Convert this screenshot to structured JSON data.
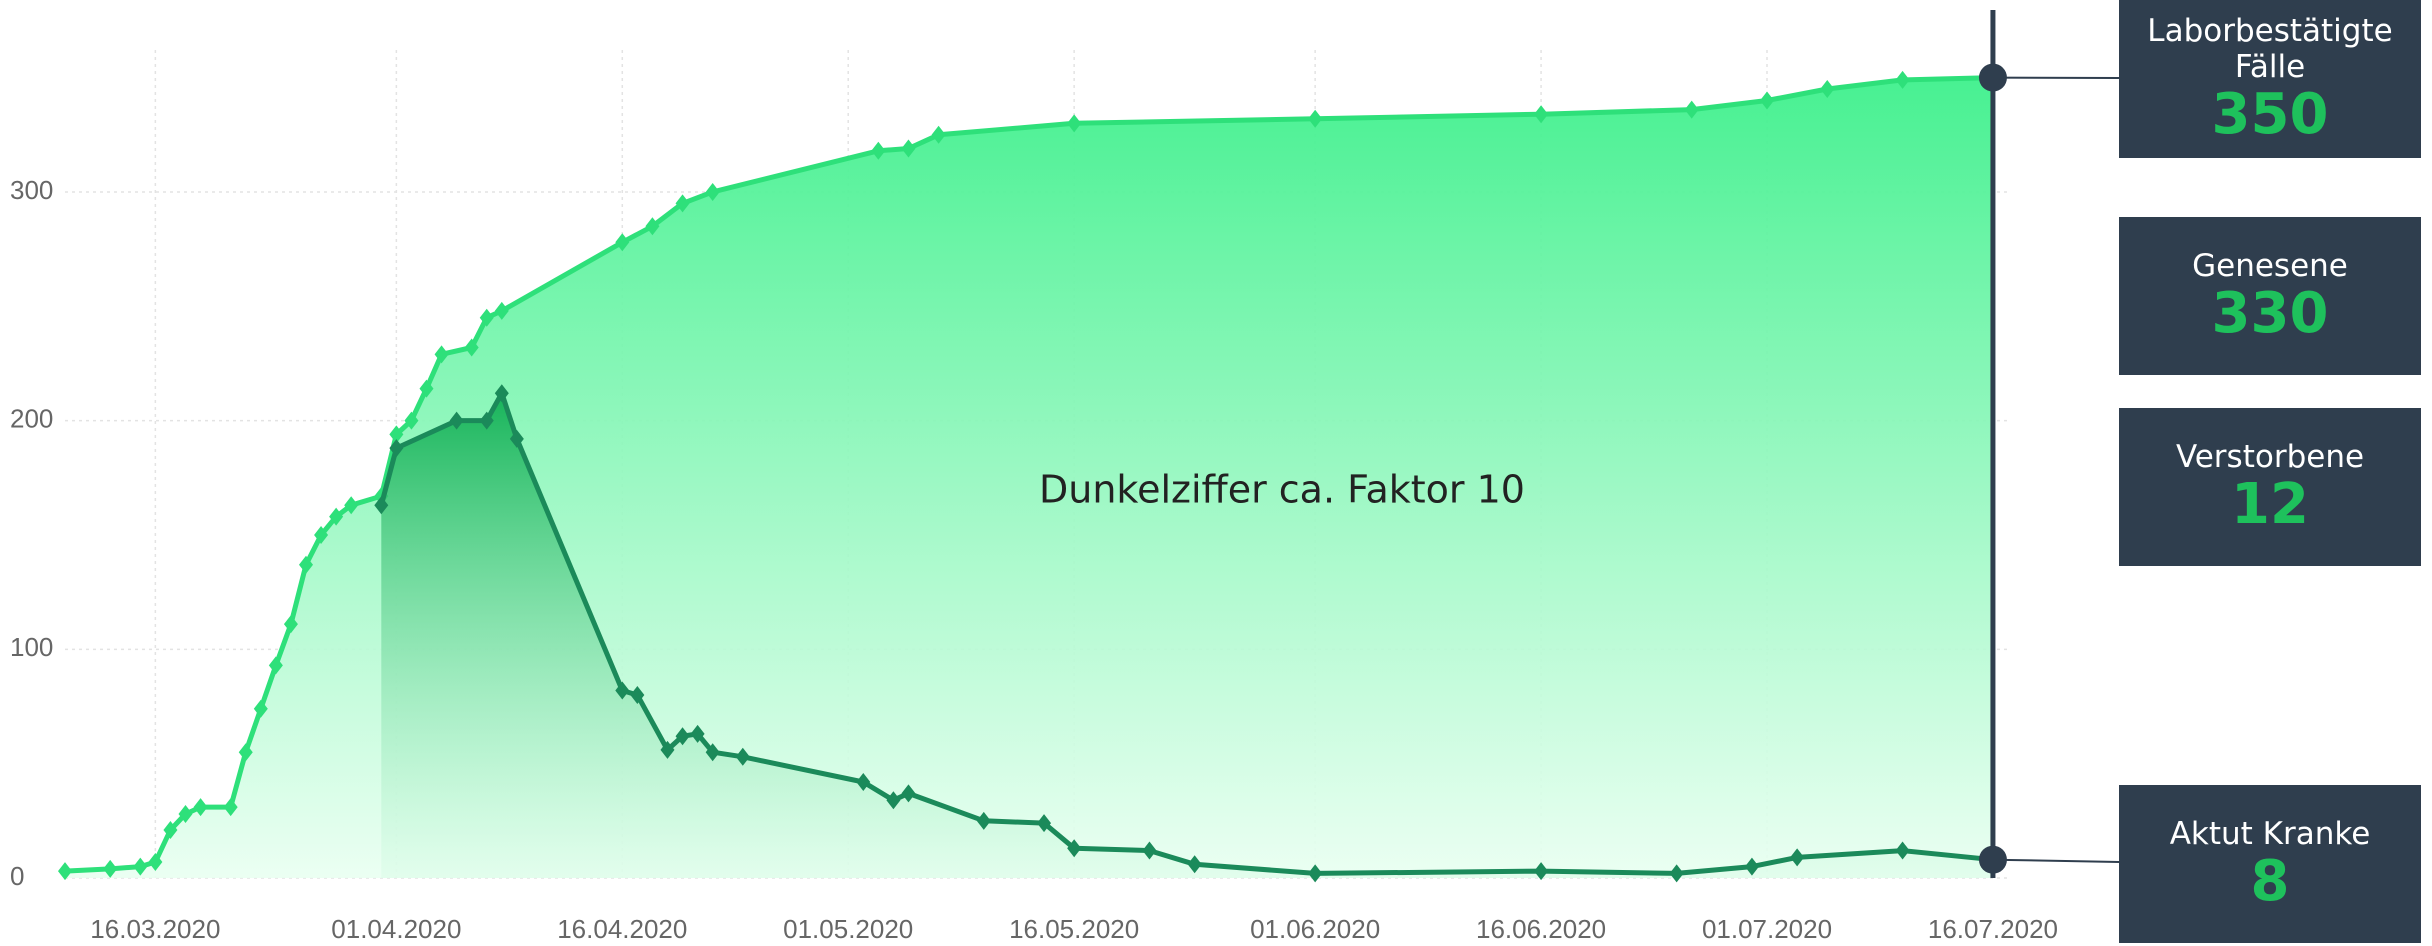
{
  "chart_data": {
    "type": "area",
    "annotation": "Dunkelziffer  ca.  Faktor 10",
    "xlim": [
      "10.03.2020",
      "17.07.2020"
    ],
    "xticks": [
      "16.03.2020",
      "01.04.2020",
      "16.04.2020",
      "01.05.2020",
      "16.05.2020",
      "01.06.2020",
      "16.06.2020",
      "01.07.2020",
      "16.07.2020"
    ],
    "ylim": [
      0,
      380
    ],
    "yticks": [
      0,
      100,
      200,
      300
    ],
    "grid": true,
    "series": [
      {
        "name": "Laborbestätigte Fälle",
        "color": "#2ee07a",
        "x": [
          "10.03.2020",
          "13.03.2020",
          "15.03.2020",
          "16.03.2020",
          "17.03.2020",
          "18.03.2020",
          "19.03.2020",
          "21.03.2020",
          "22.03.2020",
          "23.03.2020",
          "24.03.2020",
          "25.03.2020",
          "26.03.2020",
          "27.03.2020",
          "28.03.2020",
          "29.03.2020",
          "31.03.2020",
          "01.04.2020",
          "02.04.2020",
          "03.04.2020",
          "04.04.2020",
          "06.04.2020",
          "07.04.2020",
          "08.04.2020",
          "16.04.2020",
          "18.04.2020",
          "20.04.2020",
          "22.04.2020",
          "03.05.2020",
          "05.05.2020",
          "07.05.2020",
          "16.05.2020",
          "01.06.2020",
          "16.06.2020",
          "26.06.2020",
          "01.07.2020",
          "05.07.2020",
          "10.07.2020",
          "16.07.2020"
        ],
        "values": [
          3,
          4,
          5,
          7,
          21,
          28,
          31,
          31,
          55,
          74,
          93,
          111,
          137,
          150,
          158,
          163,
          167,
          194,
          200,
          214,
          229,
          232,
          245,
          248,
          278,
          285,
          295,
          300,
          318,
          319,
          325,
          330,
          332,
          334,
          336,
          340,
          345,
          349,
          350
        ]
      },
      {
        "name": "Aktut Kranke",
        "color": "#1b8a5a",
        "x": [
          "31.03.2020",
          "01.04.2020",
          "05.04.2020",
          "07.04.2020",
          "08.04.2020",
          "09.04.2020",
          "16.04.2020",
          "17.04.2020",
          "19.04.2020",
          "20.04.2020",
          "21.04.2020",
          "22.04.2020",
          "24.04.2020",
          "02.05.2020",
          "04.05.2020",
          "05.05.2020",
          "10.05.2020",
          "14.05.2020",
          "16.05.2020",
          "21.05.2020",
          "24.05.2020",
          "01.06.2020",
          "16.06.2020",
          "25.06.2020",
          "30.06.2020",
          "03.07.2020",
          "10.07.2020",
          "16.07.2020"
        ],
        "values": [
          163,
          188,
          200,
          200,
          212,
          192,
          82,
          80,
          56,
          62,
          63,
          55,
          53,
          42,
          34,
          37,
          25,
          24,
          13,
          12,
          6,
          2,
          3,
          2,
          5,
          9,
          12,
          8
        ]
      }
    ]
  },
  "cards": [
    {
      "label": "Laborbestätigte Fälle",
      "value": 350
    },
    {
      "label": "Genesene",
      "value": 330
    },
    {
      "label": "Verstorbene",
      "value": 12
    },
    {
      "label": "Aktut Kranke",
      "value": 8
    }
  ]
}
